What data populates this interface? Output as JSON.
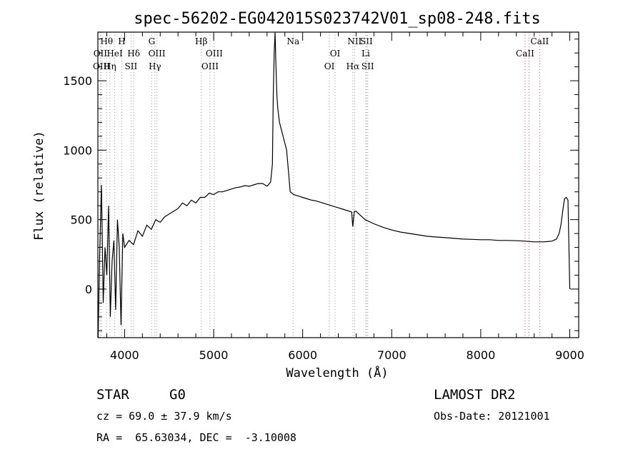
{
  "chart_data": {
    "type": "line",
    "title": "spec-56202-EG042015S023742V01_sp08-248.fits",
    "xlabel": "Wavelength (Å)",
    "ylabel": "Flux (relative)",
    "xlim": [
      3700,
      9100
    ],
    "ylim": [
      -350,
      1850
    ],
    "xticks": [
      4000,
      5000,
      6000,
      7000,
      8000,
      9000
    ],
    "yticks": [
      0,
      500,
      1000,
      1500
    ],
    "grid": false,
    "series": [
      {
        "name": "flux",
        "x": [
          3700,
          3720,
          3740,
          3760,
          3780,
          3800,
          3820,
          3840,
          3860,
          3880,
          3900,
          3920,
          3940,
          3960,
          3980,
          4000,
          4050,
          4100,
          4150,
          4200,
          4250,
          4300,
          4350,
          4400,
          4450,
          4500,
          4550,
          4600,
          4650,
          4700,
          4750,
          4800,
          4850,
          4900,
          4950,
          5000,
          5050,
          5100,
          5150,
          5200,
          5250,
          5300,
          5350,
          5400,
          5450,
          5500,
          5550,
          5600,
          5640,
          5660,
          5670,
          5680,
          5690,
          5700,
          5710,
          5720,
          5740,
          5760,
          5780,
          5800,
          5820,
          5840,
          5860,
          5880,
          5900,
          5950,
          6000,
          6050,
          6100,
          6150,
          6200,
          6250,
          6300,
          6350,
          6400,
          6450,
          6500,
          6550,
          6563,
          6580,
          6600,
          6650,
          6700,
          6800,
          6900,
          7000,
          7100,
          7200,
          7300,
          7400,
          7500,
          7600,
          7700,
          7800,
          7900,
          8000,
          8100,
          8200,
          8300,
          8400,
          8500,
          8600,
          8700,
          8750,
          8800,
          8850,
          8880,
          8900,
          8920,
          8940,
          8960,
          8980,
          9000
        ],
        "y": [
          -450,
          250,
          750,
          -100,
          300,
          100,
          600,
          -200,
          200,
          350,
          -150,
          500,
          300,
          -260,
          400,
          300,
          350,
          320,
          420,
          380,
          460,
          430,
          500,
          480,
          520,
          540,
          560,
          580,
          620,
          600,
          640,
          620,
          660,
          660,
          690,
          680,
          700,
          700,
          710,
          720,
          730,
          735,
          745,
          740,
          750,
          760,
          760,
          740,
          770,
          900,
          1400,
          1700,
          1850,
          1600,
          1400,
          1300,
          1200,
          1150,
          1100,
          1050,
          1000,
          850,
          700,
          690,
          680,
          670,
          660,
          650,
          640,
          635,
          625,
          615,
          605,
          595,
          585,
          575,
          565,
          555,
          450,
          560,
          560,
          530,
          500,
          470,
          445,
          425,
          410,
          400,
          390,
          380,
          375,
          370,
          365,
          360,
          358,
          355,
          355,
          350,
          350,
          348,
          345,
          340,
          340,
          342,
          345,
          360,
          400,
          460,
          560,
          650,
          660,
          640,
          0
        ]
      }
    ],
    "spectral_lines": [
      {
        "label": "Hθ",
        "wavelength": 3798,
        "color": "#999999",
        "row": 1
      },
      {
        "label": "OII",
        "wavelength": 3727,
        "color": "#999999",
        "row": 2
      },
      {
        "label": "OIII",
        "wavelength": 3740,
        "color": "#999999",
        "row": 3
      },
      {
        "label": "Hη",
        "wavelength": 3835,
        "color": "#999999",
        "row": 3
      },
      {
        "label": "HeI",
        "wavelength": 3889,
        "color": "#999999",
        "row": 2
      },
      {
        "label": "H",
        "wavelength": 3969,
        "color": "#999999",
        "row": 1
      },
      {
        "label": "Hδ",
        "wavelength": 4102,
        "color": "#999999",
        "row": 2
      },
      {
        "label": "SII",
        "wavelength": 4072,
        "color": "#999999",
        "row": 3
      },
      {
        "label": "G",
        "wavelength": 4305,
        "color": "#999999",
        "row": 1
      },
      {
        "label": "OIII",
        "wavelength": 4363,
        "color": "#999999",
        "row": 2
      },
      {
        "label": "Hγ",
        "wavelength": 4340,
        "color": "#999999",
        "row": 3
      },
      {
        "label": "Hβ",
        "wavelength": 4861,
        "color": "#999999",
        "row": 1
      },
      {
        "label": "OIII",
        "wavelength": 5007,
        "color": "#999999",
        "row": 2
      },
      {
        "label": "OIII",
        "wavelength": 4959,
        "color": "#999999",
        "row": 3
      },
      {
        "label": "Na",
        "wavelength": 5893,
        "color": "#999999",
        "row": 1
      },
      {
        "label": "OI",
        "wavelength": 6364,
        "color": "#999999",
        "row": 2
      },
      {
        "label": "OI",
        "wavelength": 6300,
        "color": "#999999",
        "row": 3
      },
      {
        "label": "NII",
        "wavelength": 6583,
        "color": "#999999",
        "row": 1
      },
      {
        "label": "Hα",
        "wavelength": 6563,
        "color": "#999999",
        "row": 3
      },
      {
        "label": "SII",
        "wavelength": 6716,
        "color": "#999999",
        "row": 1
      },
      {
        "label": "Li",
        "wavelength": 6708,
        "color": "#999999",
        "row": 2
      },
      {
        "label": "SII",
        "wavelength": 6731,
        "color": "#999999",
        "row": 3
      },
      {
        "label": "CaII",
        "wavelength": 8662,
        "color": "#d05050",
        "row": 1
      },
      {
        "label": "CaII",
        "wavelength": 8498,
        "color": "#d05050",
        "row": 2
      },
      {
        "label": "",
        "wavelength": 8542,
        "color": "#d05050",
        "row": 0
      }
    ]
  },
  "info": {
    "class": "STAR",
    "subclass": "G0",
    "survey": "LAMOST DR2",
    "redshift": "cz = 69.0 ± 37.9 km/s",
    "obs_date": "Obs-Date: 20121001",
    "coords": "RA =  65.63034, DEC =  -3.10008"
  }
}
